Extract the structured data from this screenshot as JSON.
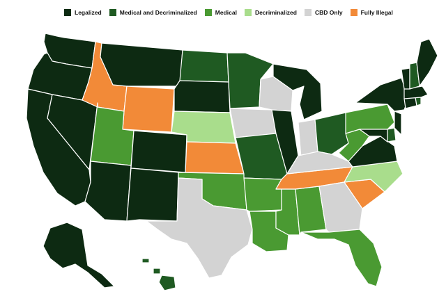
{
  "legend": [
    {
      "key": "legalized",
      "label": "Legalized",
      "color": "#0d2a12"
    },
    {
      "key": "medical_decrim",
      "label": "Medical and Decriminalized",
      "color": "#1f5a22"
    },
    {
      "key": "medical",
      "label": "Medical",
      "color": "#4a9a32"
    },
    {
      "key": "decrim",
      "label": "Decriminalized",
      "color": "#a9dd8c"
    },
    {
      "key": "cbd",
      "label": "CBD Only",
      "color": "#d3d3d3"
    },
    {
      "key": "illegal",
      "label": "Fully Illegal",
      "color": "#f28a38"
    }
  ],
  "states": {
    "legalized": [
      "WA",
      "OR",
      "CA",
      "NV",
      "MT",
      "SD",
      "CO",
      "AZ",
      "NM",
      "IL",
      "MI",
      "AK",
      "NY",
      "NJ",
      "VT",
      "ME",
      "MA",
      "CT",
      "VA",
      "MD"
    ],
    "medical_decrim": [
      "ND",
      "MN",
      "MO",
      "OH",
      "DE",
      "RI",
      "NH",
      "HI"
    ],
    "medical": [
      "UT",
      "OK",
      "AR",
      "LA",
      "MS",
      "AL",
      "FL",
      "PA",
      "WV"
    ],
    "decrim": [
      "NE",
      "NC"
    ],
    "cbd": [
      "WI",
      "IA",
      "TX",
      "IN",
      "KY",
      "GA"
    ],
    "illegal": [
      "ID",
      "WY",
      "KS",
      "TN",
      "SC"
    ]
  }
}
